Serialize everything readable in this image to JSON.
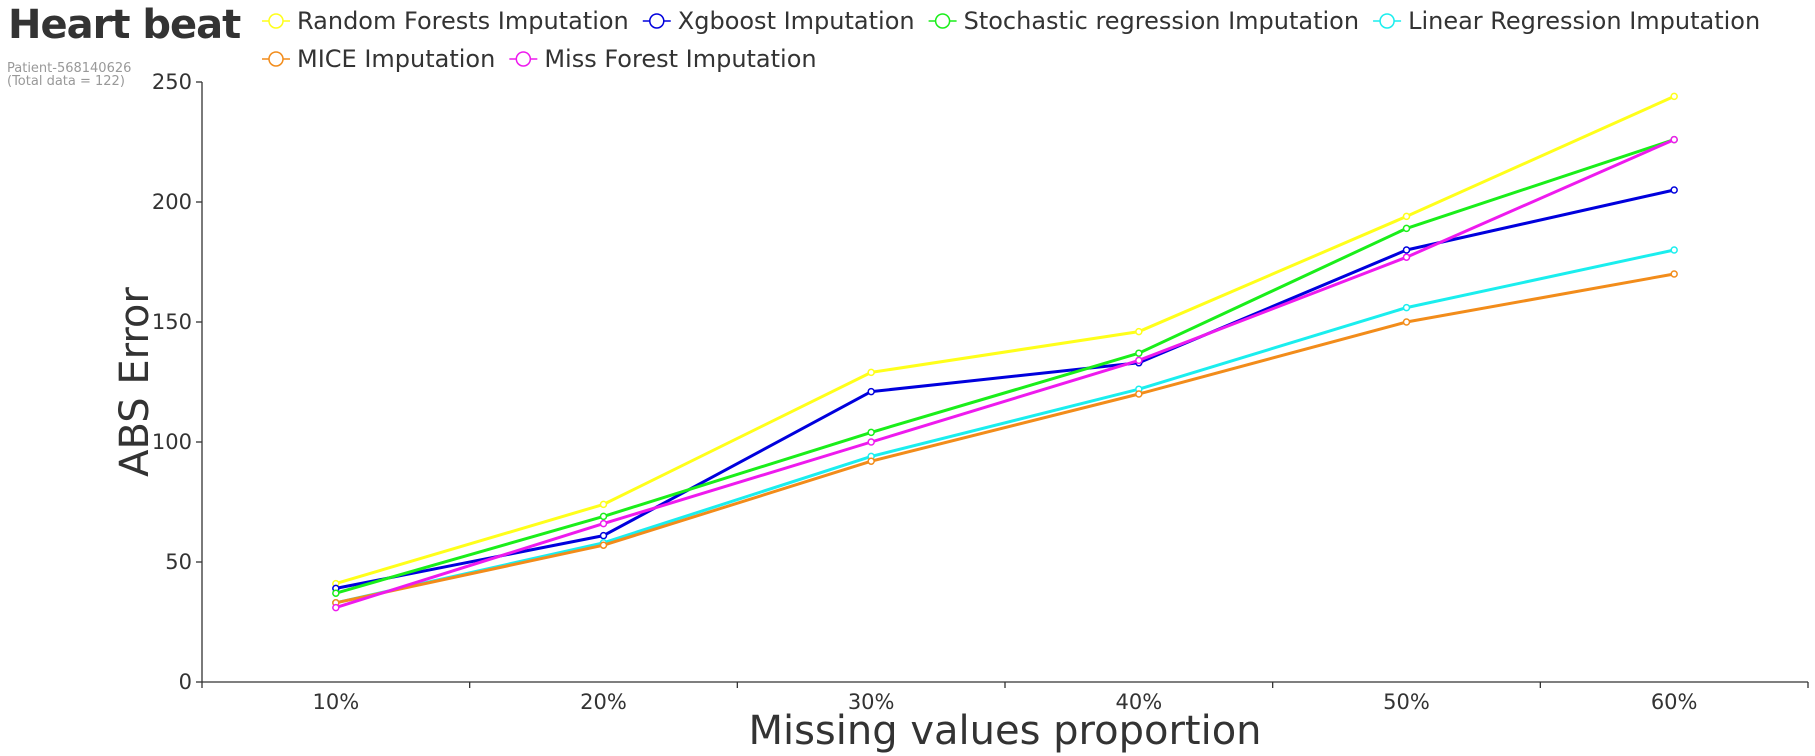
{
  "header": {
    "title": "Heart beat",
    "subtitle_line1": "Patient-568140626",
    "subtitle_line2": "(Total data = 122)"
  },
  "chart_data": {
    "type": "line",
    "title": "Heart beat",
    "xlabel": "Missing values proportion",
    "ylabel": "ABS Error",
    "categories": [
      "10%",
      "20%",
      "30%",
      "40%",
      "50%",
      "60%"
    ],
    "ylim": [
      0,
      250
    ],
    "yticks": [
      0,
      50,
      100,
      150,
      200,
      250
    ],
    "legend_position": "top",
    "grid": false,
    "series": [
      {
        "name": "Random Forests Imputation",
        "color": "#ffff1a",
        "values": [
          41,
          74,
          129,
          146,
          194,
          244
        ]
      },
      {
        "name": "Xgboost Imputation",
        "color": "#0000dd",
        "values": [
          39,
          61,
          121,
          133,
          180,
          205
        ]
      },
      {
        "name": "Stochastic regression Imputation",
        "color": "#1aee1a",
        "values": [
          37,
          69,
          104,
          137,
          189,
          226
        ]
      },
      {
        "name": "Linear Regression Imputation",
        "color": "#1aeeee",
        "values": [
          33,
          58,
          94,
          122,
          156,
          180
        ]
      },
      {
        "name": "MICE Imputation",
        "color": "#f28c1a",
        "values": [
          33,
          57,
          92,
          120,
          150,
          170
        ]
      },
      {
        "name": "Miss Forest Imputation",
        "color": "#ee1aee",
        "values": [
          31,
          66,
          100,
          134,
          177,
          226
        ]
      }
    ]
  }
}
